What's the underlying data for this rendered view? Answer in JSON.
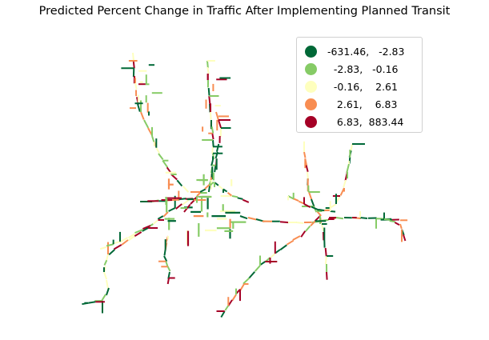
{
  "title": "Predicted Percent Change in Traffic After Implementing Planned Transit",
  "colors": {
    "class1": "#006837",
    "class2": "#86cb66",
    "class3": "#feffbe",
    "class4": "#f88d52",
    "class5": "#a50026"
  },
  "legend": [
    {
      "label": " -631.46,   -2.83",
      "color_key": "class1"
    },
    {
      "label": "   -2.83,   -0.16",
      "color_key": "class2"
    },
    {
      "label": "   -0.16,    2.61",
      "color_key": "class3"
    },
    {
      "label": "    2.61,    6.83",
      "color_key": "class4"
    },
    {
      "label": "    6.83,  883.44",
      "color_key": "class5"
    }
  ]
}
